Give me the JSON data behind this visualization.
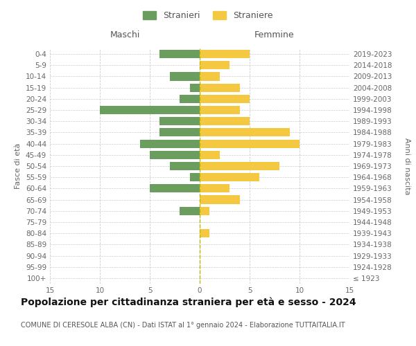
{
  "age_groups": [
    "100+",
    "95-99",
    "90-94",
    "85-89",
    "80-84",
    "75-79",
    "70-74",
    "65-69",
    "60-64",
    "55-59",
    "50-54",
    "45-49",
    "40-44",
    "35-39",
    "30-34",
    "25-29",
    "20-24",
    "15-19",
    "10-14",
    "5-9",
    "0-4"
  ],
  "birth_years": [
    "≤ 1923",
    "1924-1928",
    "1929-1933",
    "1934-1938",
    "1939-1943",
    "1944-1948",
    "1949-1953",
    "1954-1958",
    "1959-1963",
    "1964-1968",
    "1969-1973",
    "1974-1978",
    "1979-1983",
    "1984-1988",
    "1989-1993",
    "1994-1998",
    "1999-2003",
    "2004-2008",
    "2009-2013",
    "2014-2018",
    "2019-2023"
  ],
  "maschi": [
    0,
    0,
    0,
    0,
    0,
    0,
    2,
    0,
    5,
    1,
    3,
    5,
    6,
    4,
    4,
    10,
    2,
    1,
    3,
    0,
    4
  ],
  "femmine": [
    0,
    0,
    0,
    0,
    1,
    0,
    1,
    4,
    3,
    6,
    8,
    2,
    10,
    9,
    5,
    4,
    5,
    4,
    2,
    3,
    5
  ],
  "color_maschi": "#6B9E5E",
  "color_femmine": "#F5C842",
  "xlim": 15,
  "title": "Popolazione per cittadinanza straniera per età e sesso - 2024",
  "subtitle": "COMUNE DI CERESOLE ALBA (CN) - Dati ISTAT al 1° gennaio 2024 - Elaborazione TUTTAITALIA.IT",
  "ylabel_left": "Fasce di età",
  "ylabel_right": "Anni di nascita",
  "legend_maschi": "Stranieri",
  "legend_femmine": "Straniere",
  "header_left": "Maschi",
  "header_right": "Femmine",
  "bg_color": "#ffffff",
  "grid_color": "#cccccc",
  "title_fontsize": 10,
  "subtitle_fontsize": 7,
  "label_fontsize": 8,
  "tick_fontsize": 7.5
}
